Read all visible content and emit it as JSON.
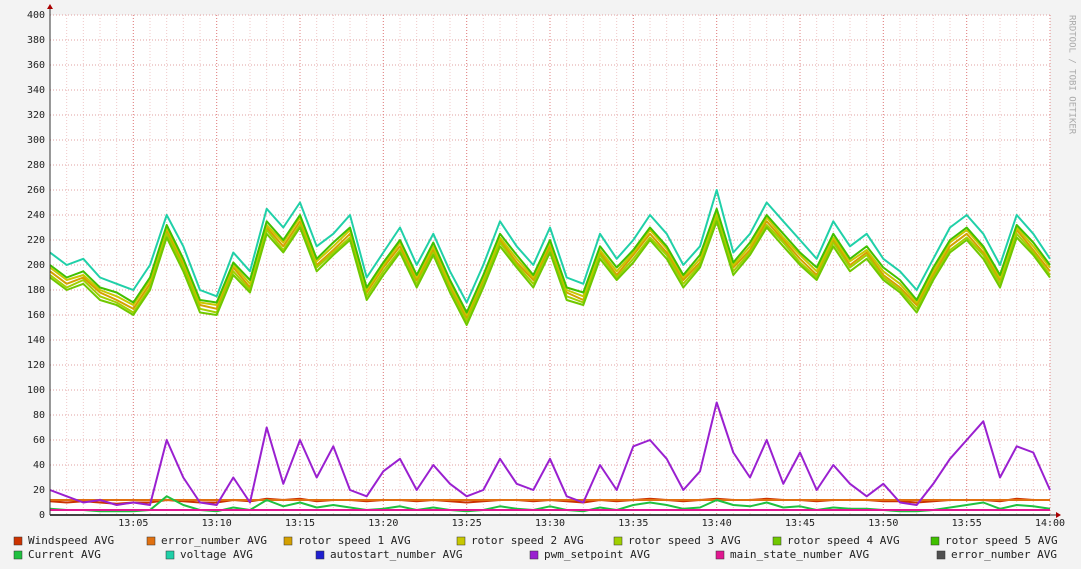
{
  "chart_data": {
    "type": "line",
    "watermark": "RRDTOOL / TOBI OETIKER",
    "x": [
      "13:00",
      "13:01",
      "13:02",
      "13:03",
      "13:04",
      "13:05",
      "13:06",
      "13:07",
      "13:08",
      "13:09",
      "13:10",
      "13:11",
      "13:12",
      "13:13",
      "13:14",
      "13:15",
      "13:16",
      "13:17",
      "13:18",
      "13:19",
      "13:20",
      "13:21",
      "13:22",
      "13:23",
      "13:24",
      "13:25",
      "13:26",
      "13:27",
      "13:28",
      "13:29",
      "13:30",
      "13:31",
      "13:32",
      "13:33",
      "13:34",
      "13:35",
      "13:36",
      "13:37",
      "13:38",
      "13:39",
      "13:40",
      "13:41",
      "13:42",
      "13:43",
      "13:44",
      "13:45",
      "13:46",
      "13:47",
      "13:48",
      "13:49",
      "13:50",
      "13:51",
      "13:52",
      "13:53",
      "13:54",
      "13:55",
      "13:56",
      "13:57",
      "13:58",
      "13:59",
      "14:00"
    ],
    "xticks": [
      "13:05",
      "13:10",
      "13:15",
      "13:20",
      "13:25",
      "13:30",
      "13:35",
      "13:40",
      "13:45",
      "13:50",
      "13:55",
      "14:00"
    ],
    "ylim": [
      0,
      400
    ],
    "yticks": [
      0,
      20,
      40,
      60,
      80,
      100,
      120,
      140,
      160,
      180,
      200,
      220,
      240,
      260,
      280,
      300,
      320,
      340,
      360,
      380,
      400
    ],
    "grid": true,
    "series": [
      {
        "name": "rotor speed 1 AVG",
        "color": "#d4a000",
        "values": [
          195,
          185,
          190,
          178,
          172,
          165,
          185,
          228,
          200,
          168,
          165,
          198,
          182,
          230,
          215,
          235,
          200,
          212,
          225,
          178,
          198,
          215,
          188,
          212,
          182,
          158,
          188,
          220,
          202,
          188,
          215,
          178,
          172,
          210,
          192,
          208,
          225,
          210,
          188,
          202,
          240,
          198,
          212,
          235,
          220,
          205,
          192,
          220,
          200,
          210,
          192,
          182,
          168,
          192,
          215,
          225,
          210,
          188,
          228,
          212,
          195
        ]
      },
      {
        "name": "rotor speed 2 AVG",
        "color": "#c8c800",
        "values": [
          198,
          188,
          192,
          180,
          175,
          168,
          188,
          230,
          203,
          170,
          168,
          200,
          185,
          232,
          218,
          238,
          203,
          215,
          228,
          180,
          200,
          218,
          190,
          215,
          185,
          160,
          190,
          222,
          205,
          190,
          218,
          180,
          175,
          212,
          195,
          210,
          228,
          213,
          190,
          205,
          242,
          200,
          215,
          238,
          222,
          208,
          195,
          222,
          203,
          212,
          195,
          185,
          170,
          195,
          218,
          228,
          213,
          190,
          230,
          215,
          198
        ]
      },
      {
        "name": "rotor speed 3 AVG",
        "color": "#a0d000",
        "values": [
          192,
          182,
          188,
          175,
          170,
          162,
          182,
          225,
          198,
          165,
          162,
          195,
          180,
          228,
          212,
          232,
          198,
          210,
          222,
          175,
          195,
          212,
          185,
          210,
          180,
          155,
          185,
          218,
          200,
          185,
          212,
          175,
          170,
          208,
          190,
          205,
          222,
          208,
          185,
          200,
          238,
          195,
          210,
          232,
          218,
          202,
          190,
          218,
          198,
          208,
          190,
          180,
          165,
          190,
          212,
          222,
          208,
          185,
          225,
          210,
          192
        ]
      },
      {
        "name": "rotor speed 4 AVG",
        "color": "#70c800",
        "values": [
          190,
          180,
          185,
          172,
          168,
          160,
          180,
          222,
          195,
          162,
          160,
          192,
          178,
          225,
          210,
          230,
          195,
          208,
          220,
          172,
          192,
          210,
          182,
          208,
          178,
          152,
          182,
          215,
          198,
          182,
          210,
          172,
          168,
          205,
          188,
          202,
          220,
          205,
          182,
          198,
          235,
          192,
          208,
          230,
          215,
          200,
          188,
          215,
          195,
          205,
          188,
          178,
          162,
          188,
          210,
          220,
          205,
          182,
          222,
          208,
          190
        ]
      },
      {
        "name": "rotor speed 5 AVG",
        "color": "#40c000",
        "values": [
          200,
          190,
          195,
          182,
          178,
          170,
          190,
          232,
          205,
          172,
          170,
          202,
          188,
          235,
          220,
          240,
          205,
          218,
          230,
          182,
          202,
          220,
          192,
          218,
          188,
          162,
          192,
          225,
          208,
          192,
          220,
          182,
          178,
          215,
          198,
          212,
          230,
          215,
          192,
          208,
          245,
          202,
          218,
          240,
          225,
          210,
          198,
          225,
          205,
          215,
          198,
          188,
          172,
          198,
          220,
          230,
          215,
          192,
          232,
          218,
          200
        ]
      },
      {
        "name": "voltage AVG",
        "color": "#20d0a8",
        "values": [
          210,
          200,
          205,
          190,
          185,
          180,
          200,
          240,
          215,
          180,
          175,
          210,
          195,
          245,
          230,
          250,
          215,
          225,
          240,
          190,
          210,
          230,
          200,
          225,
          195,
          170,
          200,
          235,
          215,
          200,
          230,
          190,
          185,
          225,
          205,
          220,
          240,
          225,
          200,
          215,
          260,
          210,
          225,
          250,
          235,
          220,
          205,
          235,
          215,
          225,
          205,
          195,
          180,
          205,
          230,
          240,
          225,
          200,
          240,
          225,
          205
        ]
      },
      {
        "name": "Windspeed AVG",
        "color": "#cc3300",
        "values": [
          11,
          10,
          11,
          10,
          9,
          10,
          10,
          12,
          11,
          10,
          10,
          12,
          11,
          13,
          12,
          13,
          11,
          12,
          12,
          11,
          12,
          12,
          11,
          12,
          11,
          10,
          11,
          12,
          12,
          11,
          12,
          11,
          10,
          12,
          11,
          12,
          13,
          12,
          11,
          12,
          13,
          12,
          12,
          13,
          12,
          12,
          11,
          12,
          12,
          12,
          11,
          11,
          10,
          11,
          12,
          12,
          12,
          11,
          13,
          12,
          12
        ]
      },
      {
        "name": "error_number AVG",
        "color": "#e07010",
        "values": [
          12,
          12,
          12,
          12,
          12,
          12,
          12,
          12,
          12,
          12,
          12,
          12,
          12,
          12,
          12,
          12,
          12,
          12,
          12,
          12,
          12,
          12,
          12,
          12,
          12,
          12,
          12,
          12,
          12,
          12,
          12,
          12,
          12,
          12,
          12,
          12,
          12,
          12,
          12,
          12,
          12,
          12,
          12,
          12,
          12,
          12,
          12,
          12,
          12,
          12,
          12,
          12,
          12,
          12,
          12,
          12,
          12,
          12,
          12,
          12,
          12
        ]
      },
      {
        "name": "Current AVG",
        "color": "#20c040",
        "values": [
          5,
          4,
          4,
          3,
          3,
          3,
          4,
          15,
          8,
          4,
          3,
          6,
          4,
          12,
          7,
          10,
          6,
          8,
          6,
          4,
          5,
          7,
          4,
          6,
          4,
          3,
          4,
          7,
          5,
          4,
          7,
          4,
          3,
          6,
          4,
          8,
          10,
          8,
          5,
          6,
          12,
          8,
          7,
          10,
          6,
          7,
          4,
          6,
          5,
          5,
          4,
          3,
          3,
          4,
          6,
          8,
          10,
          5,
          8,
          7,
          5
        ]
      },
      {
        "name": "autostart_number AVG",
        "color": "#2020d0",
        "values": [
          0,
          0,
          0,
          0,
          0,
          0,
          0,
          0,
          0,
          0,
          0,
          0,
          0,
          0,
          0,
          0,
          0,
          0,
          0,
          0,
          0,
          0,
          0,
          0,
          0,
          0,
          0,
          0,
          0,
          0,
          0,
          0,
          0,
          0,
          0,
          0,
          0,
          0,
          0,
          0,
          0,
          0,
          0,
          0,
          0,
          0,
          0,
          0,
          0,
          0,
          0,
          0,
          0,
          0,
          0,
          0,
          0,
          0,
          0,
          0,
          0
        ]
      },
      {
        "name": "pwm_setpoint AVG",
        "color": "#9a20d0",
        "values": [
          20,
          15,
          10,
          12,
          8,
          10,
          8,
          60,
          30,
          10,
          8,
          30,
          10,
          70,
          25,
          60,
          30,
          55,
          20,
          15,
          35,
          45,
          20,
          40,
          25,
          15,
          20,
          45,
          25,
          20,
          45,
          15,
          10,
          40,
          20,
          55,
          60,
          45,
          20,
          35,
          90,
          50,
          30,
          60,
          25,
          50,
          20,
          40,
          25,
          15,
          25,
          10,
          8,
          25,
          45,
          60,
          75,
          30,
          55,
          50,
          20
        ]
      },
      {
        "name": "main_state_number AVG",
        "color": "#e01890",
        "values": [
          4,
          4,
          4,
          4,
          4,
          4,
          4,
          4,
          4,
          4,
          4,
          4,
          4,
          4,
          4,
          4,
          4,
          4,
          4,
          4,
          4,
          4,
          4,
          4,
          4,
          4,
          4,
          4,
          4,
          4,
          4,
          4,
          4,
          4,
          4,
          4,
          4,
          4,
          4,
          4,
          4,
          4,
          4,
          4,
          4,
          4,
          4,
          4,
          4,
          4,
          4,
          4,
          4,
          4,
          4,
          4,
          4,
          4,
          4,
          4,
          4
        ]
      },
      {
        "name": "error_number AVG",
        "color": "#505050",
        "values": [
          0,
          0,
          0,
          0,
          0,
          0,
          0,
          0,
          0,
          0,
          0,
          0,
          0,
          0,
          0,
          0,
          0,
          0,
          0,
          0,
          0,
          0,
          0,
          0,
          0,
          0,
          0,
          0,
          0,
          0,
          0,
          0,
          0,
          0,
          0,
          0,
          0,
          0,
          0,
          0,
          0,
          0,
          0,
          0,
          0,
          0,
          0,
          0,
          0,
          0,
          0,
          0,
          0,
          0,
          0,
          0,
          0,
          0,
          0,
          0,
          0
        ]
      }
    ],
    "legend_order": [
      6,
      7,
      0,
      1,
      2,
      3,
      4,
      8,
      5,
      9,
      10,
      11,
      12
    ]
  }
}
